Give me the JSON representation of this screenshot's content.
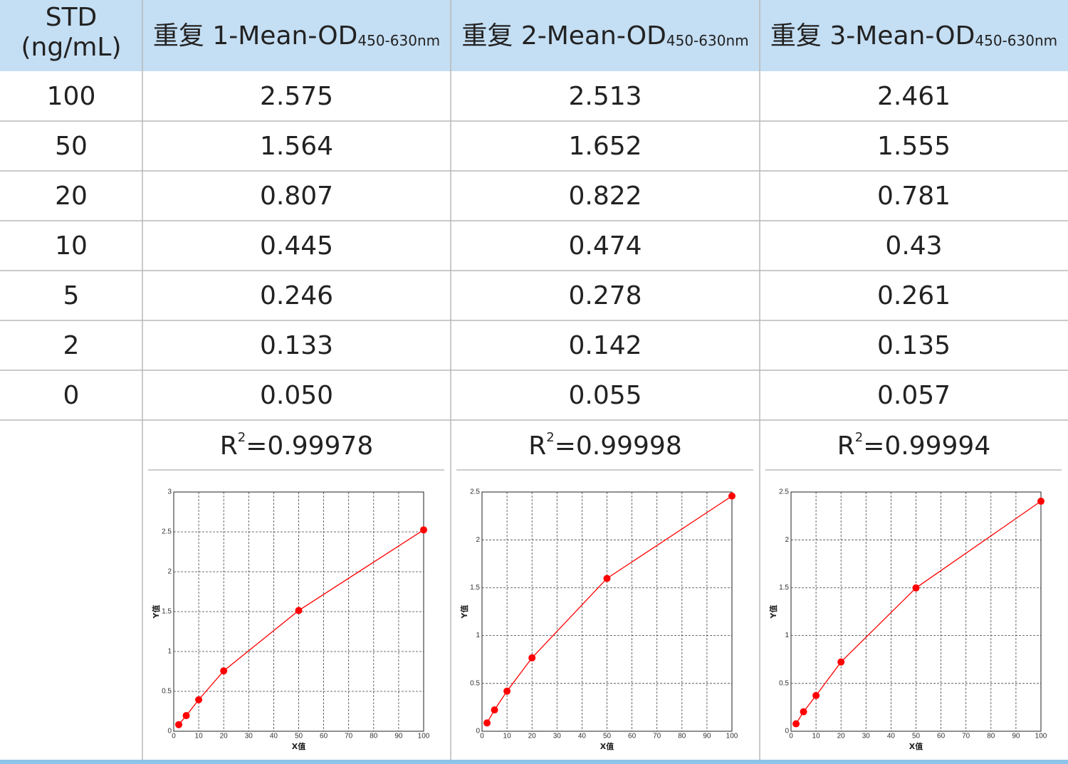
{
  "table": {
    "header": {
      "std": [
        "STD",
        "(ng/mL)"
      ],
      "reps": [
        {
          "main": "重复 1-Mean-OD",
          "sub": "450-630nm"
        },
        {
          "main": "重复 2-Mean-OD",
          "sub": "450-630nm"
        },
        {
          "main": "重复 3-Mean-OD",
          "sub": "450-630nm"
        }
      ]
    },
    "rows": [
      [
        "100",
        "2.575",
        "2.513",
        "2.461"
      ],
      [
        "50",
        "1.564",
        "1.652",
        "1.555"
      ],
      [
        "20",
        "0.807",
        "0.822",
        "0.781"
      ],
      [
        "10",
        "0.445",
        "0.474",
        "0.43"
      ],
      [
        "5",
        "0.246",
        "0.278",
        "0.261"
      ],
      [
        "2",
        "0.133",
        "0.142",
        "0.135"
      ],
      [
        "0",
        "0.050",
        "0.055",
        "0.057"
      ]
    ],
    "r_squared": [
      {
        "base": "R",
        "exp": "2",
        "text": "=0.99978"
      },
      {
        "base": "R",
        "exp": "2",
        "text": "=0.99998"
      },
      {
        "base": "R",
        "exp": "2",
        "text": "=0.99994"
      }
    ]
  },
  "chart_data": [
    {
      "type": "line",
      "x": [
        2,
        5,
        10,
        20,
        50,
        100
      ],
      "series": [
        {
          "color": "#ff0000",
          "values": [
            0.083,
            0.196,
            0.395,
            0.757,
            1.514,
            2.525
          ]
        }
      ],
      "xlim": [
        0,
        100
      ],
      "ylim": [
        0,
        3
      ],
      "xticks": [
        0,
        10,
        20,
        30,
        40,
        50,
        60,
        70,
        80,
        90,
        100
      ],
      "yticks": [
        0,
        0.5,
        1,
        1.5,
        2,
        2.5,
        3
      ],
      "x_label": "X值",
      "y_label": "Y值",
      "grid": true
    },
    {
      "type": "line",
      "x": [
        2,
        5,
        10,
        20,
        50,
        100
      ],
      "series": [
        {
          "color": "#ff0000",
          "values": [
            0.087,
            0.223,
            0.419,
            0.767,
            1.597,
            2.458
          ]
        }
      ],
      "xlim": [
        0,
        100
      ],
      "ylim": [
        0,
        2.5
      ],
      "xticks": [
        0,
        10,
        20,
        30,
        40,
        50,
        60,
        70,
        80,
        90,
        100
      ],
      "yticks": [
        0,
        0.5,
        1,
        1.5,
        2,
        2.5
      ],
      "x_label": "X值",
      "y_label": "Y值",
      "grid": true
    },
    {
      "type": "line",
      "x": [
        2,
        5,
        10,
        20,
        50,
        100
      ],
      "series": [
        {
          "color": "#ff0000",
          "values": [
            0.078,
            0.204,
            0.373,
            0.724,
            1.498,
            2.404
          ]
        }
      ],
      "xlim": [
        0,
        100
      ],
      "ylim": [
        0,
        2.5
      ],
      "xticks": [
        0,
        10,
        20,
        30,
        40,
        50,
        60,
        70,
        80,
        90,
        100
      ],
      "yticks": [
        0,
        0.5,
        1,
        1.5,
        2,
        2.5
      ],
      "x_label": "X值",
      "y_label": "Y值",
      "grid": true
    }
  ]
}
